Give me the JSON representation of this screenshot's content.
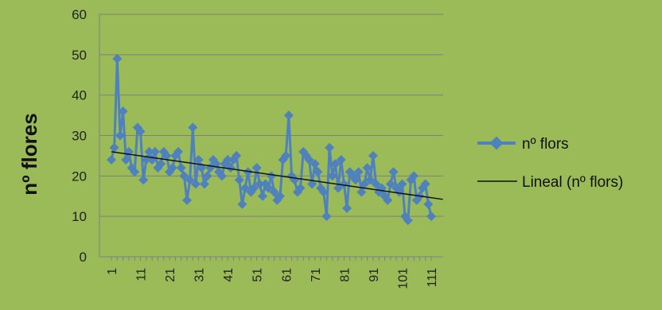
{
  "chart_data": {
    "type": "line",
    "title": "",
    "xlabel": "",
    "ylabel": "nº flores",
    "ylim": [
      0,
      60
    ],
    "yticks": [
      0,
      10,
      20,
      30,
      40,
      50,
      60
    ],
    "xticks": [
      1,
      11,
      21,
      31,
      41,
      51,
      61,
      71,
      81,
      91,
      101,
      111
    ],
    "xlim": [
      1,
      111
    ],
    "grid": true,
    "legend_position": "right",
    "series": [
      {
        "name": "nº flors",
        "color": "#4f81bd",
        "marker": "diamond",
        "x_start": 1,
        "values": [
          24,
          27,
          49,
          30,
          36,
          24,
          26,
          22,
          21,
          32,
          31,
          19,
          24,
          26,
          24,
          26,
          22,
          23,
          26,
          25,
          21,
          22,
          25,
          26,
          22,
          20,
          14,
          19,
          32,
          18,
          24,
          22,
          18,
          20,
          22,
          24,
          23,
          21,
          20,
          23,
          24,
          22,
          24,
          25,
          19,
          13,
          17,
          21,
          16,
          17,
          22,
          18,
          15,
          18,
          17,
          20,
          16,
          14,
          15,
          24,
          25,
          35,
          20,
          19,
          16,
          17,
          26,
          25,
          24,
          18,
          23,
          21,
          17,
          16,
          10,
          27,
          20,
          23,
          17,
          24,
          18,
          12,
          21,
          20,
          19,
          21,
          16,
          18,
          22,
          19,
          25,
          18,
          16,
          17,
          15,
          14,
          18,
          21,
          17,
          16,
          18,
          10,
          9,
          19,
          20,
          14,
          15,
          17,
          18,
          13,
          10
        ]
      },
      {
        "name": "Lineal (nº flors)",
        "type": "trendline",
        "color": "#111111",
        "x": [
          1,
          115
        ],
        "values": [
          26,
          14.2
        ]
      }
    ]
  }
}
